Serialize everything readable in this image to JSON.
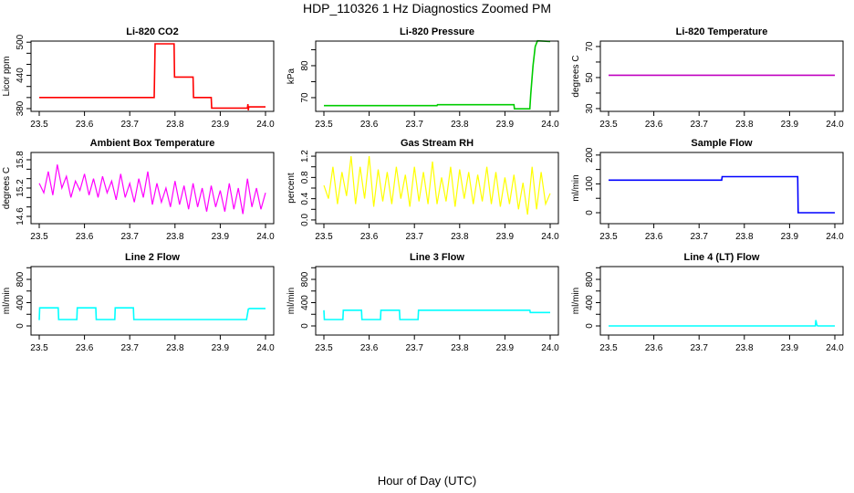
{
  "title": "HDP_110326  1 Hz Diagnostics Zoomed PM",
  "xlabel": "Hour of Day (UTC)",
  "chart_data": [
    {
      "type": "line",
      "title": "Li-820 CO2",
      "ylabel": "Licor ppm",
      "color": "#ff0000",
      "xlim": [
        23.5,
        24.0
      ],
      "ylim": [
        375,
        502
      ],
      "xticks": [
        23.5,
        23.6,
        23.7,
        23.8,
        23.9,
        24.0
      ],
      "xtick_labels": [
        "23.5",
        "23.6",
        "23.7",
        "23.8",
        "23.9",
        "24.0"
      ],
      "yticks": [
        380,
        400,
        420,
        440,
        460,
        480,
        500
      ],
      "ytick_labels": [
        "380",
        "",
        "",
        "440",
        "",
        "",
        "500"
      ],
      "points": [
        [
          23.5,
          400
        ],
        [
          23.754,
          400
        ],
        [
          23.756,
          497
        ],
        [
          23.798,
          497
        ],
        [
          23.799,
          437
        ],
        [
          23.84,
          437
        ],
        [
          23.841,
          400
        ],
        [
          23.88,
          400
        ],
        [
          23.881,
          381
        ],
        [
          23.96,
          381
        ],
        [
          23.961,
          388
        ],
        [
          23.962,
          377
        ],
        [
          23.963,
          383
        ],
        [
          24.0,
          383
        ]
      ]
    },
    {
      "type": "line",
      "title": "Li-820 Pressure",
      "ylabel": "kPa",
      "color": "#00cc00",
      "xlim": [
        23.5,
        24.0
      ],
      "ylim": [
        65.7,
        87.7
      ],
      "xticks": [
        23.5,
        23.6,
        23.7,
        23.8,
        23.9,
        24.0
      ],
      "xtick_labels": [
        "23.5",
        "23.6",
        "23.7",
        "23.8",
        "23.9",
        "24.0"
      ],
      "yticks": [
        70,
        75,
        80,
        85
      ],
      "ytick_labels": [
        "70",
        "",
        "80",
        ""
      ],
      "points": [
        [
          23.5,
          67.5
        ],
        [
          23.75,
          67.5
        ],
        [
          23.751,
          67.8
        ],
        [
          23.92,
          67.8
        ],
        [
          23.921,
          66.5
        ],
        [
          23.955,
          66.5
        ],
        [
          23.957,
          71
        ],
        [
          23.962,
          80
        ],
        [
          23.967,
          86
        ],
        [
          23.972,
          87.8
        ],
        [
          24.0,
          87.6
        ]
      ]
    },
    {
      "type": "line",
      "title": "Li-820 Temperature",
      "ylabel": "degrees C",
      "color": "#c000c0",
      "xlim": [
        23.5,
        24.0
      ],
      "ylim": [
        28.2,
        73.5
      ],
      "xticks": [
        23.5,
        23.6,
        23.7,
        23.8,
        23.9,
        24.0
      ],
      "xtick_labels": [
        "23.5",
        "23.6",
        "23.7",
        "23.8",
        "23.9",
        "24.0"
      ],
      "yticks": [
        30,
        40,
        50,
        60,
        70
      ],
      "ytick_labels": [
        "30",
        "",
        "50",
        "",
        "70"
      ],
      "points": [
        [
          23.5,
          51.5
        ],
        [
          24.0,
          51.5
        ]
      ]
    },
    {
      "type": "line",
      "title": "Ambient Box Temperature",
      "ylabel": "degrees C",
      "color": "#ff00ff",
      "xlim": [
        23.5,
        24.0
      ],
      "ylim": [
        14.445,
        15.955
      ],
      "xticks": [
        23.5,
        23.6,
        23.7,
        23.8,
        23.9,
        24.0
      ],
      "xtick_labels": [
        "23.5",
        "23.6",
        "23.7",
        "23.8",
        "23.9",
        "24.0"
      ],
      "yticks": [
        14.6,
        14.8,
        15.0,
        15.2,
        15.4,
        15.6,
        15.8
      ],
      "ytick_labels": [
        "14.6",
        "",
        "",
        "15.2",
        "",
        "",
        "15.8"
      ],
      "x": [
        23.5,
        23.51,
        23.52,
        23.53,
        23.54,
        23.55,
        23.56,
        23.57,
        23.58,
        23.59,
        23.6,
        23.61,
        23.62,
        23.63,
        23.64,
        23.65,
        23.66,
        23.67,
        23.68,
        23.69,
        23.7,
        23.71,
        23.72,
        23.73,
        23.74,
        23.75,
        23.76,
        23.77,
        23.78,
        23.79,
        23.8,
        23.81,
        23.82,
        23.83,
        23.84,
        23.85,
        23.86,
        23.87,
        23.88,
        23.89,
        23.9,
        23.91,
        23.92,
        23.93,
        23.94,
        23.95,
        23.96,
        23.97,
        23.98,
        23.99,
        24.0
      ],
      "y": [
        15.3,
        15.1,
        15.55,
        15.05,
        15.7,
        15.2,
        15.45,
        15.0,
        15.35,
        15.15,
        15.5,
        15.05,
        15.4,
        15.0,
        15.45,
        15.1,
        15.35,
        14.95,
        15.5,
        15.0,
        15.3,
        14.9,
        15.4,
        15.0,
        15.55,
        14.85,
        15.3,
        14.9,
        15.2,
        14.8,
        15.35,
        14.85,
        15.25,
        14.75,
        15.3,
        14.8,
        15.2,
        14.7,
        15.25,
        14.8,
        15.15,
        14.7,
        15.3,
        14.75,
        15.2,
        14.65,
        15.4,
        14.8,
        15.2,
        14.75,
        15.1
      ]
    },
    {
      "type": "line",
      "title": "Gas Stream RH",
      "ylabel": "percent",
      "color": "#ffff00",
      "xlim": [
        23.5,
        24.0
      ],
      "ylim": [
        -0.07,
        1.27
      ],
      "xticks": [
        23.5,
        23.6,
        23.7,
        23.8,
        23.9,
        24.0
      ],
      "xtick_labels": [
        "23.5",
        "23.6",
        "23.7",
        "23.8",
        "23.9",
        "24.0"
      ],
      "yticks": [
        0.0,
        0.2,
        0.4,
        0.6,
        0.8,
        1.0,
        1.2
      ],
      "ytick_labels": [
        "0.0",
        "",
        "0.4",
        "",
        "0.8",
        "",
        "1.2"
      ],
      "x": [
        23.5,
        23.51,
        23.52,
        23.53,
        23.54,
        23.55,
        23.56,
        23.57,
        23.58,
        23.59,
        23.6,
        23.61,
        23.62,
        23.63,
        23.64,
        23.65,
        23.66,
        23.67,
        23.68,
        23.69,
        23.7,
        23.71,
        23.72,
        23.73,
        23.74,
        23.75,
        23.76,
        23.77,
        23.78,
        23.79,
        23.8,
        23.81,
        23.82,
        23.83,
        23.84,
        23.85,
        23.86,
        23.87,
        23.88,
        23.89,
        23.9,
        23.91,
        23.92,
        23.93,
        23.94,
        23.95,
        23.96,
        23.97,
        23.98,
        23.99,
        24.0
      ],
      "y": [
        0.65,
        0.4,
        1.0,
        0.3,
        0.9,
        0.45,
        1.2,
        0.3,
        1.0,
        0.4,
        1.2,
        0.25,
        0.95,
        0.35,
        0.9,
        0.3,
        1.0,
        0.4,
        0.85,
        0.25,
        1.0,
        0.35,
        0.9,
        0.3,
        1.1,
        0.3,
        0.8,
        0.35,
        1.0,
        0.25,
        0.95,
        0.4,
        0.9,
        0.3,
        0.85,
        0.35,
        1.0,
        0.3,
        0.9,
        0.25,
        0.8,
        0.3,
        0.85,
        0.2,
        0.7,
        0.1,
        1.0,
        0.2,
        0.9,
        0.3,
        0.5
      ]
    },
    {
      "type": "line",
      "title": "Sample Flow",
      "ylabel": "ml/min",
      "color": "#0000ff",
      "xlim": [
        23.5,
        24.0
      ],
      "ylim": [
        -38,
        209
      ],
      "xticks": [
        23.5,
        23.6,
        23.7,
        23.8,
        23.9,
        24.0
      ],
      "xtick_labels": [
        "23.5",
        "23.6",
        "23.7",
        "23.8",
        "23.9",
        "24.0"
      ],
      "yticks": [
        0,
        50,
        100,
        150,
        200
      ],
      "ytick_labels": [
        "0",
        "",
        "100",
        "",
        "200"
      ],
      "points": [
        [
          23.5,
          113
        ],
        [
          23.75,
          113
        ],
        [
          23.751,
          125
        ],
        [
          23.918,
          125
        ],
        [
          23.919,
          0
        ],
        [
          24.0,
          0
        ]
      ]
    },
    {
      "type": "line",
      "title": "Line 2 Flow",
      "ylabel": "ml/min",
      "color": "#00ffff",
      "xlim": [
        23.5,
        24.0
      ],
      "ylim": [
        -157,
        1020
      ],
      "xticks": [
        23.5,
        23.6,
        23.7,
        23.8,
        23.9,
        24.0
      ],
      "xtick_labels": [
        "23.5",
        "23.6",
        "23.7",
        "23.8",
        "23.9",
        "24.0"
      ],
      "yticks": [
        0,
        200,
        400,
        600,
        800,
        1000
      ],
      "ytick_labels": [
        "0",
        "",
        "400",
        "",
        "800",
        ""
      ],
      "points": [
        [
          23.5,
          100
        ],
        [
          23.501,
          310
        ],
        [
          23.542,
          310
        ],
        [
          23.543,
          110
        ],
        [
          23.583,
          110
        ],
        [
          23.584,
          310
        ],
        [
          23.625,
          310
        ],
        [
          23.626,
          110
        ],
        [
          23.667,
          110
        ],
        [
          23.668,
          310
        ],
        [
          23.708,
          310
        ],
        [
          23.709,
          110
        ],
        [
          23.958,
          110
        ],
        [
          23.962,
          290
        ],
        [
          23.965,
          300
        ],
        [
          24.0,
          300
        ]
      ]
    },
    {
      "type": "line",
      "title": "Line 3 Flow",
      "ylabel": "ml/min",
      "color": "#00ffff",
      "xlim": [
        23.5,
        24.0
      ],
      "ylim": [
        -157,
        1020
      ],
      "xticks": [
        23.5,
        23.6,
        23.7,
        23.8,
        23.9,
        24.0
      ],
      "xtick_labels": [
        "23.5",
        "23.6",
        "23.7",
        "23.8",
        "23.9",
        "24.0"
      ],
      "yticks": [
        0,
        200,
        400,
        600,
        800,
        1000
      ],
      "ytick_labels": [
        "0",
        "",
        "400",
        "",
        "800",
        ""
      ],
      "points": [
        [
          23.5,
          270
        ],
        [
          23.501,
          110
        ],
        [
          23.542,
          110
        ],
        [
          23.543,
          270
        ],
        [
          23.583,
          270
        ],
        [
          23.584,
          110
        ],
        [
          23.625,
          110
        ],
        [
          23.626,
          270
        ],
        [
          23.667,
          270
        ],
        [
          23.668,
          110
        ],
        [
          23.708,
          110
        ],
        [
          23.709,
          270
        ],
        [
          23.955,
          270
        ],
        [
          23.956,
          230
        ],
        [
          24.0,
          230
        ]
      ]
    },
    {
      "type": "line",
      "title": "Line 4 (LT) Flow",
      "ylabel": "ml/min",
      "color": "#00ffff",
      "xlim": [
        23.5,
        24.0
      ],
      "ylim": [
        -157,
        1020
      ],
      "xticks": [
        23.5,
        23.6,
        23.7,
        23.8,
        23.9,
        24.0
      ],
      "xtick_labels": [
        "23.5",
        "23.6",
        "23.7",
        "23.8",
        "23.9",
        "24.0"
      ],
      "yticks": [
        0,
        200,
        400,
        600,
        800,
        1000
      ],
      "ytick_labels": [
        "0",
        "",
        "400",
        "",
        "800",
        ""
      ],
      "points": [
        [
          23.5,
          0
        ],
        [
          23.957,
          0
        ],
        [
          23.958,
          100
        ],
        [
          23.96,
          20
        ],
        [
          23.962,
          0
        ],
        [
          24.0,
          0
        ]
      ]
    }
  ]
}
